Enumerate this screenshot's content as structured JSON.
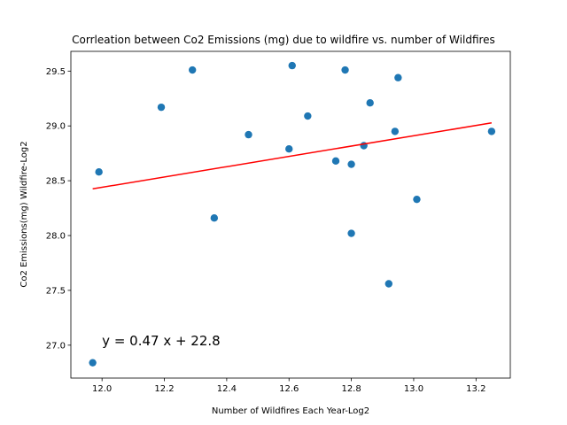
{
  "chart_data": {
    "type": "scatter",
    "title": "Corrleation between Co2 Emissions (mg) due to wildfire vs. number of Wildfires",
    "xlabel": "Number of Wildfires Each Year-Log2",
    "ylabel": "Co2 Emissions(mg) Wildfire-Log2",
    "xlim": [
      11.9,
      13.31
    ],
    "ylim": [
      26.7,
      29.68
    ],
    "xticks": [
      "12.0",
      "12.2",
      "12.4",
      "12.6",
      "12.8",
      "13.0",
      "13.2"
    ],
    "yticks": [
      "27.0",
      "27.5",
      "28.0",
      "28.5",
      "29.0",
      "29.5"
    ],
    "grid": false,
    "points_color": "#1f77b4",
    "line_color": "#ff0000",
    "points": [
      {
        "x": 11.97,
        "y": 26.84
      },
      {
        "x": 11.99,
        "y": 28.58
      },
      {
        "x": 12.19,
        "y": 29.17
      },
      {
        "x": 12.29,
        "y": 29.51
      },
      {
        "x": 12.36,
        "y": 28.16
      },
      {
        "x": 12.47,
        "y": 28.92
      },
      {
        "x": 12.6,
        "y": 28.79
      },
      {
        "x": 12.61,
        "y": 29.55
      },
      {
        "x": 12.66,
        "y": 29.09
      },
      {
        "x": 12.75,
        "y": 28.68
      },
      {
        "x": 12.78,
        "y": 29.51
      },
      {
        "x": 12.8,
        "y": 28.65
      },
      {
        "x": 12.8,
        "y": 28.02
      },
      {
        "x": 12.84,
        "y": 28.82
      },
      {
        "x": 12.86,
        "y": 29.21
      },
      {
        "x": 12.92,
        "y": 27.56
      },
      {
        "x": 12.94,
        "y": 28.95
      },
      {
        "x": 12.95,
        "y": 29.44
      },
      {
        "x": 13.01,
        "y": 28.33
      },
      {
        "x": 13.25,
        "y": 28.95
      }
    ],
    "regression": {
      "slope": 0.47,
      "intercept": 22.8,
      "x_start": 11.97,
      "x_end": 13.25
    },
    "annotation": "y = 0.47 x + 22.8"
  }
}
